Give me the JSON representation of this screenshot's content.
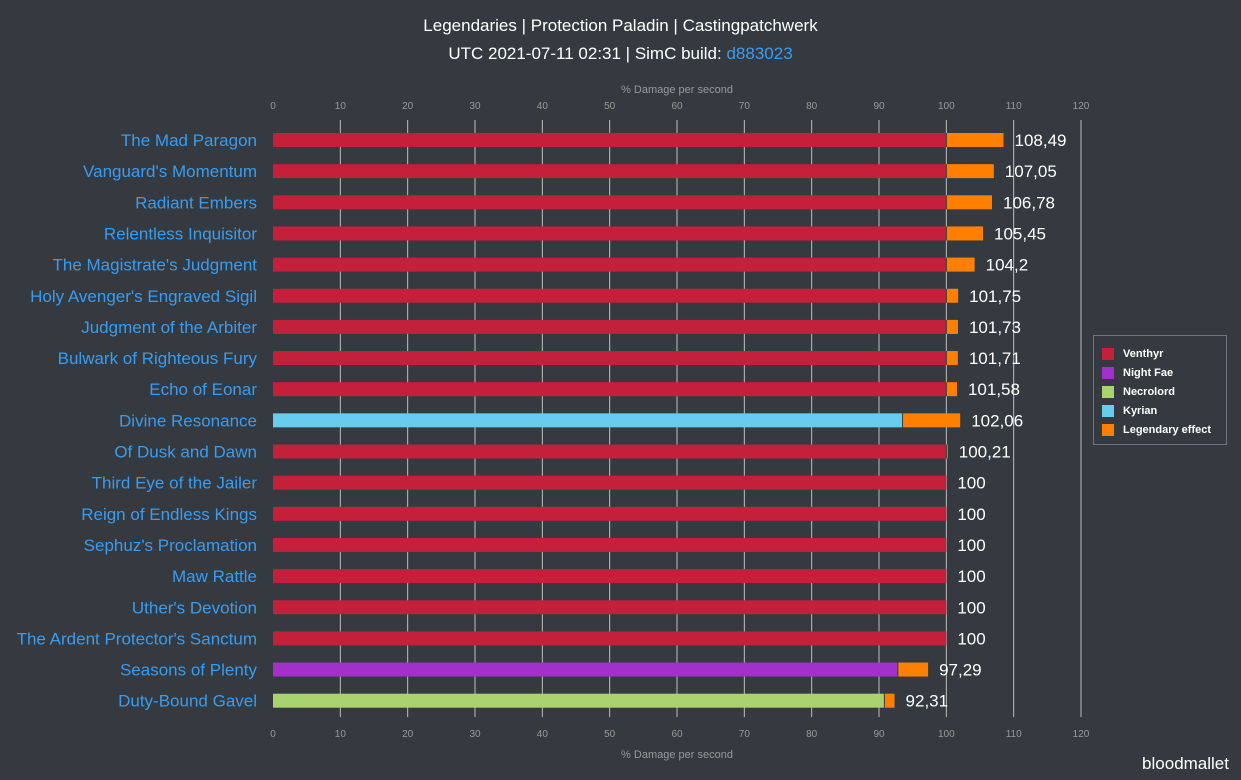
{
  "header": {
    "title": "Legendaries | Protection Paladin | Castingpatchwerk",
    "subtitle_prefix": "UTC 2021-07-11 02:31 | SimC build: ",
    "build": "d883023"
  },
  "watermark": "bloodmallet",
  "colors": {
    "Venthyr": "#c41f3b",
    "Night Fae": "#a330c9",
    "Necrolord": "#a9d271",
    "Kyrian": "#68ccef",
    "Legendary effect": "#ff8000",
    "label": "#3a9cf0",
    "background": "#343a40"
  },
  "chart_data": {
    "type": "bar",
    "orientation": "horizontal",
    "stacked": true,
    "xlabel": "% Damage per second",
    "xlim": [
      0,
      120
    ],
    "ticks": [
      0,
      10,
      20,
      30,
      40,
      50,
      60,
      70,
      80,
      90,
      100,
      110,
      120
    ],
    "legend": [
      "Venthyr",
      "Night Fae",
      "Necrolord",
      "Kyrian",
      "Legendary effect"
    ],
    "legend_position": "right",
    "bars": [
      {
        "name": "The Mad Paragon",
        "covenant": "Venthyr",
        "base": 100,
        "total": 108.49,
        "label": "108,49"
      },
      {
        "name": "Vanguard's Momentum",
        "covenant": "Venthyr",
        "base": 100,
        "total": 107.05,
        "label": "107,05"
      },
      {
        "name": "Radiant Embers",
        "covenant": "Venthyr",
        "base": 100,
        "total": 106.78,
        "label": "106,78"
      },
      {
        "name": "Relentless Inquisitor",
        "covenant": "Venthyr",
        "base": 100,
        "total": 105.45,
        "label": "105,45"
      },
      {
        "name": "The Magistrate's Judgment",
        "covenant": "Venthyr",
        "base": 100,
        "total": 104.2,
        "label": "104,2"
      },
      {
        "name": "Holy Avenger's Engraved Sigil",
        "covenant": "Venthyr",
        "base": 100,
        "total": 101.75,
        "label": "101,75"
      },
      {
        "name": "Judgment of the Arbiter",
        "covenant": "Venthyr",
        "base": 100,
        "total": 101.73,
        "label": "101,73"
      },
      {
        "name": "Bulwark of Righteous Fury",
        "covenant": "Venthyr",
        "base": 100,
        "total": 101.71,
        "label": "101,71"
      },
      {
        "name": "Echo of Eonar",
        "covenant": "Venthyr",
        "base": 100,
        "total": 101.58,
        "label": "101,58"
      },
      {
        "name": "Divine Resonance",
        "covenant": "Kyrian",
        "base": 93.5,
        "total": 102.06,
        "label": "102,06"
      },
      {
        "name": "Of Dusk and Dawn",
        "covenant": "Venthyr",
        "base": 100,
        "total": 100.21,
        "label": "100,21"
      },
      {
        "name": "Third Eye of the Jailer",
        "covenant": "Venthyr",
        "base": 100,
        "total": 100,
        "label": "100"
      },
      {
        "name": "Reign of Endless Kings",
        "covenant": "Venthyr",
        "base": 100,
        "total": 100,
        "label": "100"
      },
      {
        "name": "Sephuz's Proclamation",
        "covenant": "Venthyr",
        "base": 100,
        "total": 100,
        "label": "100"
      },
      {
        "name": "Maw Rattle",
        "covenant": "Venthyr",
        "base": 100,
        "total": 100,
        "label": "100"
      },
      {
        "name": "Uther's Devotion",
        "covenant": "Venthyr",
        "base": 100,
        "total": 100,
        "label": "100"
      },
      {
        "name": "The Ardent Protector's Sanctum",
        "covenant": "Venthyr",
        "base": 100,
        "total": 100,
        "label": "100"
      },
      {
        "name": "Seasons of Plenty",
        "covenant": "Night Fae",
        "base": 92.8,
        "total": 97.29,
        "label": "97,29"
      },
      {
        "name": "Duty-Bound Gavel",
        "covenant": "Necrolord",
        "base": 90.8,
        "total": 92.31,
        "label": "92,31"
      }
    ]
  }
}
